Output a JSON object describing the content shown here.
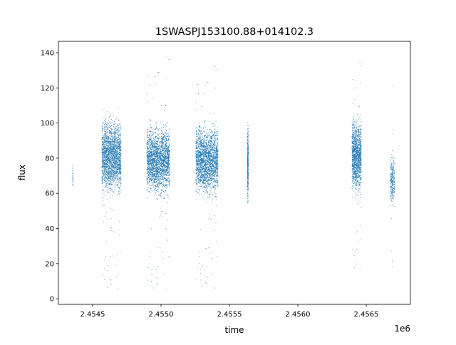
{
  "chart_data": {
    "type": "scatter",
    "title": "1SWASPJ153100.88+014102.3",
    "xlabel": "time",
    "ylabel": "flux",
    "x_offset_label": "1e6",
    "xlim": [
      2.45425,
      2.456823
    ],
    "ylim": [
      -3.2,
      146.5
    ],
    "x_ticks": [
      2.4545,
      2.455,
      2.4555,
      2.456,
      2.4565
    ],
    "x_tick_labels": [
      "2.4545",
      "2.4550",
      "2.4555",
      "2.4560",
      "2.4565"
    ],
    "y_ticks": [
      0,
      20,
      40,
      60,
      80,
      100,
      120,
      140
    ],
    "y_tick_labels": [
      "0",
      "20",
      "40",
      "60",
      "80",
      "100",
      "120",
      "140"
    ],
    "grid": false,
    "color": "#1f77b4",
    "clusters": [
      {
        "x_range": [
          2.454352,
          2.454358
        ],
        "y_core": [
          59,
          79
        ],
        "y_outliers": [
          59,
          79
        ],
        "n": 30
      },
      {
        "x_range": [
          2.454568,
          2.454708
        ],
        "y_core": [
          55,
          107
        ],
        "y_outliers": [
          4,
          110
        ],
        "n": 2500
      },
      {
        "x_range": [
          2.454896,
          2.455063
        ],
        "y_core": [
          55,
          103
        ],
        "y_outliers": [
          3,
          140
        ],
        "n": 3200
      },
      {
        "x_range": [
          2.455255,
          2.455417
        ],
        "y_core": [
          54,
          104
        ],
        "y_outliers": [
          4,
          134
        ],
        "n": 3000
      },
      {
        "x_range": [
          2.455632,
          2.455638
        ],
        "y_core": [
          52,
          103
        ],
        "y_outliers": [
          52,
          103
        ],
        "n": 400
      },
      {
        "x_range": [
          2.456396,
          2.456464
        ],
        "y_core": [
          55,
          108
        ],
        "y_outliers": [
          15,
          136
        ],
        "n": 1500
      },
      {
        "x_range": [
          2.456677,
          2.456708
        ],
        "y_core": [
          48,
          87
        ],
        "y_outliers": [
          14,
          131
        ],
        "n": 300
      }
    ]
  }
}
